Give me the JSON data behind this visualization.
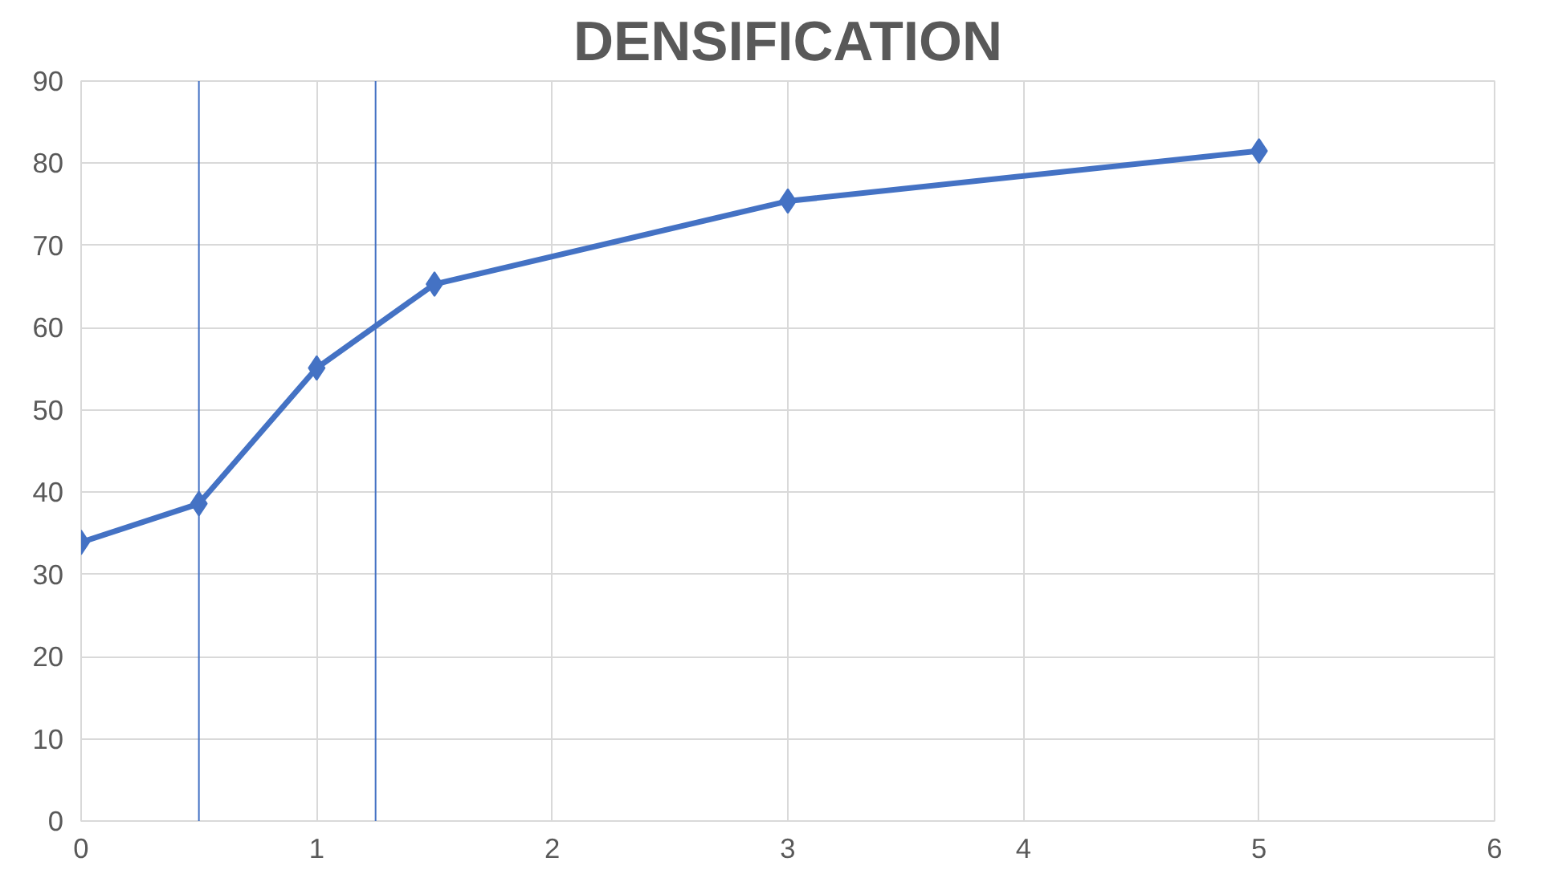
{
  "chart_data": {
    "type": "line",
    "title": "DENSIFICATION",
    "x": [
      0,
      0.5,
      1,
      1.5,
      3,
      5
    ],
    "series": [
      {
        "color": "#4472c4",
        "values": [
          33.9,
          38.6,
          55.1,
          65.3,
          75.4,
          81.5
        ]
      }
    ],
    "xlim": [
      0,
      6
    ],
    "xticks": [
      0,
      1,
      2,
      3,
      4,
      5,
      6
    ],
    "ylim": [
      0,
      90
    ],
    "yticks": [
      0,
      10,
      20,
      30,
      40,
      50,
      60,
      70,
      80,
      90
    ],
    "grid": true,
    "marker": "diamond",
    "line_style": "solid",
    "ref_lines": [
      {
        "axis": "x",
        "value": 0.5,
        "color": "#4472c4"
      },
      {
        "axis": "x",
        "value": 1.25,
        "color": "#4472c4"
      }
    ]
  }
}
